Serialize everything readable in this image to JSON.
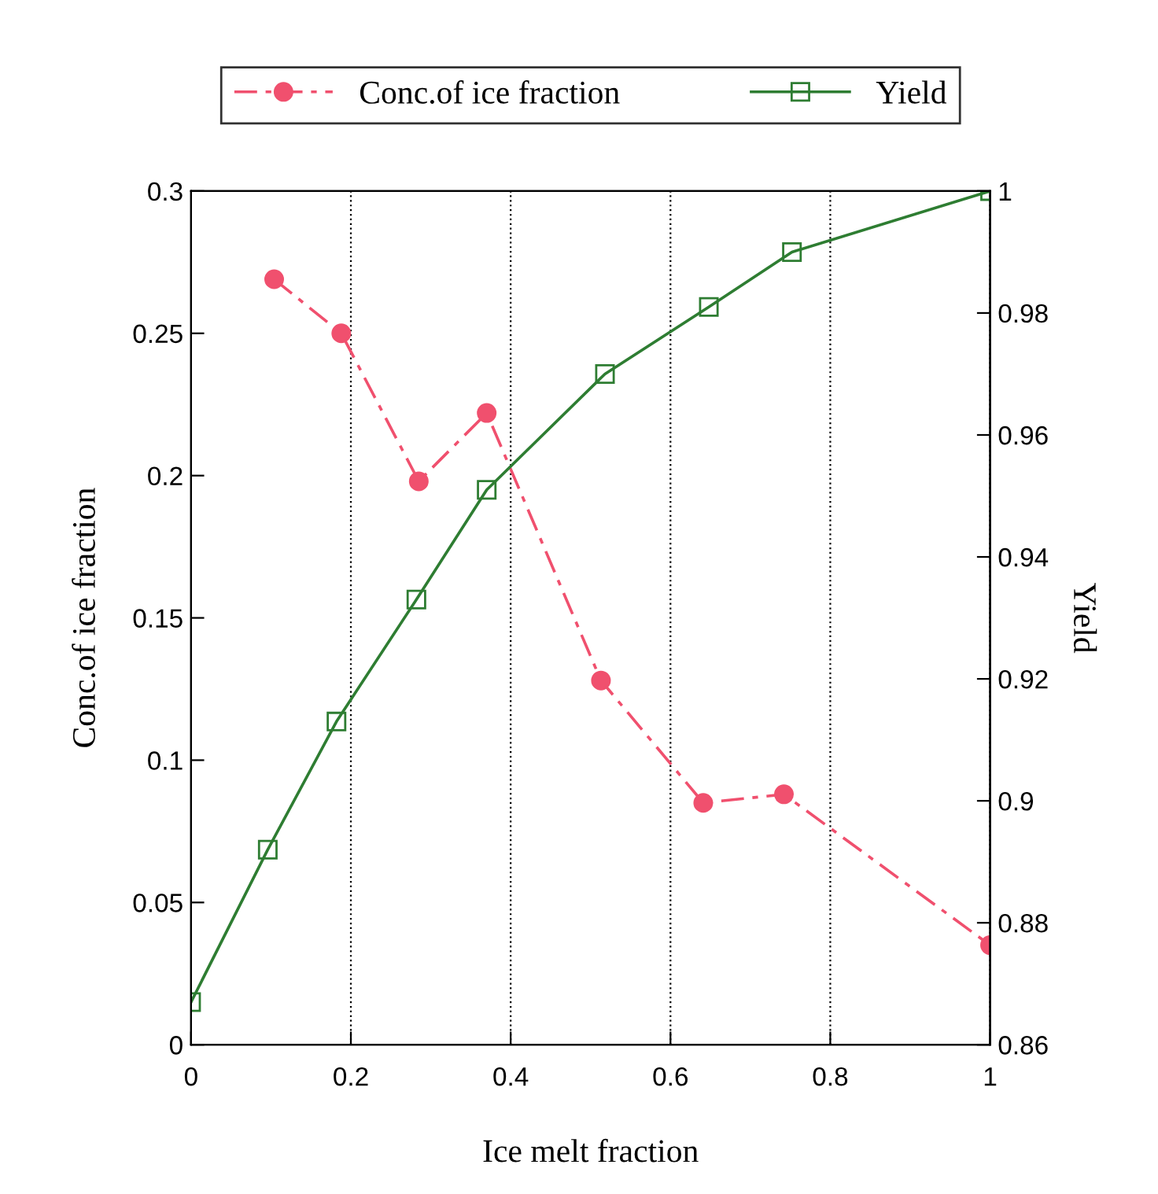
{
  "chart_data": {
    "type": "line",
    "xlabel": "Ice melt fraction",
    "ylabel": "Conc.of ice fraction",
    "y2label": "Yield",
    "xlim": [
      0,
      1
    ],
    "xticks": [
      0,
      0.2,
      0.4,
      0.6,
      0.8,
      1
    ],
    "ylim": [
      0,
      0.3
    ],
    "yticks": [
      0,
      0.05,
      0.1,
      0.15,
      0.2,
      0.25,
      0.3
    ],
    "y2lim": [
      0.86,
      1
    ],
    "y2ticks": [
      0.86,
      0.88,
      0.9,
      0.92,
      0.94,
      0.96,
      0.98,
      1
    ],
    "grid": "x",
    "legend": "top",
    "series": [
      {
        "name": "Conc.of ice fraction",
        "color": "#f0506e",
        "marker": "circle",
        "line_style": "dashed",
        "x": [
          0.104,
          0.188,
          0.285,
          0.37,
          0.513,
          0.641,
          0.742,
          1.0
        ],
        "values": [
          0.269,
          0.25,
          0.198,
          0.222,
          0.128,
          0.085,
          0.088,
          0.035
        ]
      },
      {
        "name": "Yield",
        "color": "#2e7d32",
        "marker": "square",
        "line_style": "solid",
        "axis": "y2",
        "x": [
          0,
          0.096,
          0.182,
          0.282,
          0.37,
          0.518,
          0.648,
          0.752,
          1.0
        ],
        "values": [
          0.867,
          0.892,
          0.913,
          0.933,
          0.951,
          0.97,
          0.981,
          0.99,
          1.0
        ]
      }
    ]
  }
}
